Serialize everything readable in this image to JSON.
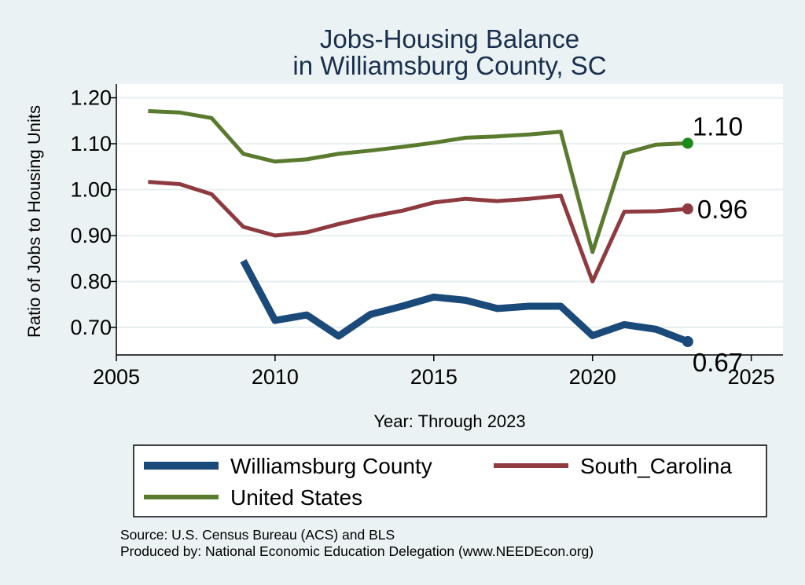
{
  "chart_data": {
    "type": "line",
    "title": [
      "Jobs-Housing Balance",
      "in Williamsburg County, SC"
    ],
    "xlabel": "Year: Through 2023",
    "ylabel": "Ratio of Jobs to Housing Units",
    "xlim": [
      2005,
      2026
    ],
    "ylim": [
      0.64,
      1.23
    ],
    "xticks": [
      2005,
      2010,
      2015,
      2020,
      2025
    ],
    "yticks": [
      0.7,
      0.8,
      0.9,
      1.0,
      1.1,
      1.2
    ],
    "ytick_labels": [
      "0.70",
      "0.80",
      "0.90",
      "1.00",
      "1.10",
      "1.20"
    ],
    "grid": true,
    "legend_position": "bottom",
    "series": [
      {
        "name": "Williamsburg County",
        "color": "#1a4a7a",
        "x": [
          2009,
          2010,
          2011,
          2012,
          2013,
          2014,
          2015,
          2016,
          2017,
          2018,
          2019,
          2020,
          2021,
          2022,
          2023
        ],
        "values": [
          0.845,
          0.715,
          0.727,
          0.681,
          0.728,
          0.746,
          0.766,
          0.759,
          0.741,
          0.746,
          0.746,
          0.682,
          0.706,
          0.696,
          0.669
        ],
        "end_label": "0.67"
      },
      {
        "name": "South_Carolina",
        "color": "#8e3a3f",
        "x": [
          2006,
          2007,
          2008,
          2009,
          2010,
          2011,
          2012,
          2013,
          2014,
          2015,
          2016,
          2017,
          2018,
          2019,
          2020,
          2021,
          2022,
          2023
        ],
        "values": [
          1.017,
          1.012,
          0.99,
          0.919,
          0.9,
          0.907,
          0.925,
          0.941,
          0.954,
          0.972,
          0.98,
          0.975,
          0.98,
          0.987,
          0.8,
          0.952,
          0.953,
          0.958
        ],
        "end_label": "0.96"
      },
      {
        "name": "United States",
        "color": "#5a7a2e",
        "x": [
          2006,
          2007,
          2008,
          2009,
          2010,
          2011,
          2012,
          2013,
          2014,
          2015,
          2016,
          2017,
          2018,
          2019,
          2020,
          2021,
          2022,
          2023
        ],
        "values": [
          1.171,
          1.168,
          1.156,
          1.078,
          1.061,
          1.066,
          1.078,
          1.085,
          1.093,
          1.102,
          1.113,
          1.116,
          1.12,
          1.126,
          0.864,
          1.079,
          1.098,
          1.101
        ],
        "end_label": "1.10"
      }
    ],
    "end_marker_colors": [
      "#1a4a7a",
      "#8e3a3f",
      "#1a8a1a"
    ]
  },
  "notes": {
    "source": "Source: U.S. Census Bureau (ACS) and BLS",
    "producer": "Produced by: National Economic Education Delegation (www.NEEDEcon.org)"
  }
}
